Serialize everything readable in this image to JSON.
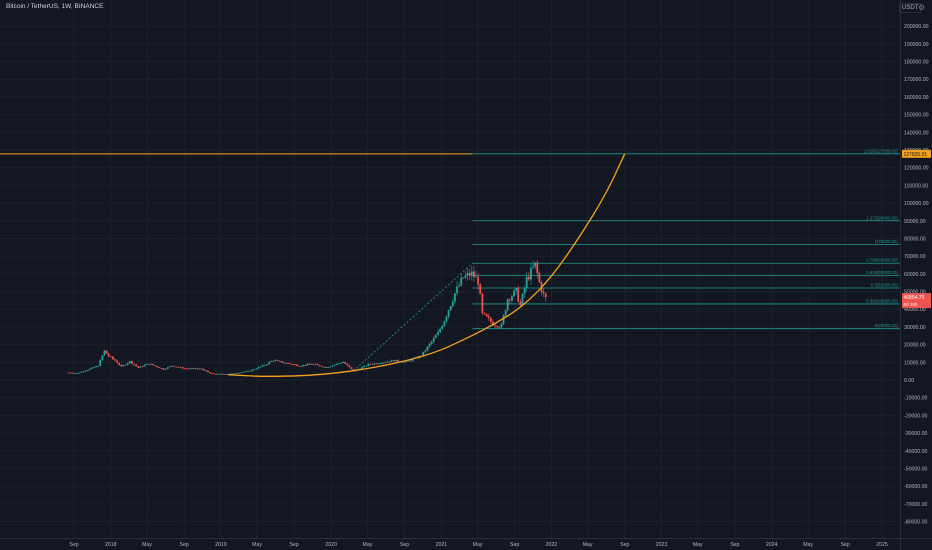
{
  "header": {
    "symbol_title": "Bitcoin / TetherUS, 1W, BINANCE",
    "currency": "USDT",
    "settings_icon": "gear-icon"
  },
  "colors": {
    "background": "#131722",
    "grid": "#1c202b",
    "axis_text": "#b2b5be",
    "up": "#26a69a",
    "down": "#ef5350",
    "curve": "#f7a21c",
    "fib": "#1f9b90",
    "price_badge": "#ef5350",
    "target_badge": "#f7a21c"
  },
  "chart_data": {
    "type": "candlestick",
    "title": "Bitcoin / TetherUS, 1W, BINANCE",
    "ylim": [
      -85000,
      212000
    ],
    "grid": true,
    "y_ticks": [
      -80000,
      -70000,
      -60000,
      -50000,
      -40000,
      -30000,
      -20000,
      -10000,
      0,
      10000,
      20000,
      30000,
      40000,
      50000,
      60000,
      70000,
      80000,
      90000,
      100000,
      110000,
      120000,
      130000,
      140000,
      150000,
      160000,
      170000,
      180000,
      190000,
      200000
    ],
    "x_ticks": [
      {
        "label": "Sep",
        "date": "2017-09-01"
      },
      {
        "label": "2018",
        "date": "2018-01-01"
      },
      {
        "label": "May",
        "date": "2018-05-01"
      },
      {
        "label": "Sep",
        "date": "2018-09-01"
      },
      {
        "label": "2019",
        "date": "2019-01-01"
      },
      {
        "label": "May",
        "date": "2019-05-01"
      },
      {
        "label": "Sep",
        "date": "2019-09-01"
      },
      {
        "label": "2020",
        "date": "2020-01-01"
      },
      {
        "label": "May",
        "date": "2020-05-01"
      },
      {
        "label": "Sep",
        "date": "2020-09-01"
      },
      {
        "label": "2021",
        "date": "2021-01-01"
      },
      {
        "label": "May",
        "date": "2021-05-01"
      },
      {
        "label": "Sep",
        "date": "2021-09-01"
      },
      {
        "label": "2022",
        "date": "2022-01-01"
      },
      {
        "label": "May",
        "date": "2022-05-01"
      },
      {
        "label": "Sep",
        "date": "2022-09-01"
      },
      {
        "label": "2023",
        "date": "2023-01-01"
      },
      {
        "label": "May",
        "date": "2023-05-01"
      },
      {
        "label": "Sep",
        "date": "2023-09-01"
      },
      {
        "label": "2024",
        "date": "2024-01-01"
      },
      {
        "label": "May",
        "date": "2024-05-01"
      },
      {
        "label": "Sep",
        "date": "2024-09-01"
      },
      {
        "label": "2025",
        "date": "2025-01-01"
      }
    ],
    "price_path": [
      [
        "2017-08-14",
        4200
      ],
      [
        "2017-09-11",
        3900
      ],
      [
        "2017-10-16",
        5700
      ],
      [
        "2017-11-20",
        8200
      ],
      [
        "2017-12-11",
        16500
      ],
      [
        "2017-12-25",
        13500
      ],
      [
        "2018-01-15",
        11000
      ],
      [
        "2018-02-05",
        7500
      ],
      [
        "2018-03-05",
        10500
      ],
      [
        "2018-04-02",
        7000
      ],
      [
        "2018-05-07",
        9300
      ],
      [
        "2018-06-25",
        6100
      ],
      [
        "2018-07-23",
        8100
      ],
      [
        "2018-09-03",
        6500
      ],
      [
        "2018-10-29",
        6300
      ],
      [
        "2018-11-26",
        3800
      ],
      [
        "2018-12-17",
        3300
      ],
      [
        "2019-02-11",
        3600
      ],
      [
        "2019-04-08",
        5200
      ],
      [
        "2019-05-27",
        8600
      ],
      [
        "2019-06-24",
        11200
      ],
      [
        "2019-07-29",
        9800
      ],
      [
        "2019-09-23",
        8000
      ],
      [
        "2019-10-28",
        9200
      ],
      [
        "2019-12-16",
        7100
      ],
      [
        "2020-02-10",
        10200
      ],
      [
        "2020-03-16",
        5000
      ],
      [
        "2020-05-04",
        8800
      ],
      [
        "2020-07-27",
        11000
      ],
      [
        "2020-09-07",
        10300
      ],
      [
        "2020-10-26",
        13700
      ],
      [
        "2020-12-21",
        26500
      ],
      [
        "2021-01-11",
        34000
      ],
      [
        "2021-02-15",
        49000
      ],
      [
        "2021-03-15",
        58000
      ],
      [
        "2021-04-12",
        60000
      ],
      [
        "2021-05-03",
        56000
      ],
      [
        "2021-05-17",
        37000
      ],
      [
        "2021-06-21",
        32000
      ],
      [
        "2021-07-19",
        30500
      ],
      [
        "2021-08-09",
        46000
      ],
      [
        "2021-09-06",
        50000
      ],
      [
        "2021-09-20",
        42000
      ],
      [
        "2021-10-11",
        57000
      ],
      [
        "2021-10-25",
        61000
      ],
      [
        "2021-11-08",
        65000
      ],
      [
        "2021-11-22",
        55000
      ],
      [
        "2021-12-06",
        48000
      ],
      [
        "2021-12-13",
        46000
      ]
    ],
    "annotations": {
      "horizontal_line": {
        "value": 127835.01,
        "to_date": "2021-04-14"
      },
      "parabolic_curve": {
        "points": [
          [
            "2019-01-25",
            3000
          ],
          [
            "2019-06-01",
            1800
          ],
          [
            "2019-12-01",
            2800
          ],
          [
            "2020-06-01",
            7000
          ],
          [
            "2020-12-01",
            14500
          ],
          [
            "2021-04-01",
            24000
          ],
          [
            "2021-07-01",
            32000
          ],
          [
            "2021-10-01",
            42000
          ],
          [
            "2022-01-01",
            58000
          ],
          [
            "2022-04-01",
            80000
          ],
          [
            "2022-07-01",
            105000
          ],
          [
            "2022-09-01",
            127835
          ]
        ]
      },
      "dashed_trend": {
        "from": [
          "2020-03-15",
          5000
        ],
        "to": [
          "2021-04-14",
          66000
        ]
      },
      "fib_levels": [
        {
          "value": 127835,
          "label": "1.618(127835.01)"
        },
        {
          "value": 90000,
          "label": "1.272(90000.00)"
        },
        {
          "value": 76500,
          "label": "1(76500.00)"
        },
        {
          "value": 66000,
          "label": "0.786(66000.00)"
        },
        {
          "value": 59000,
          "label": "0.618(59000.00)"
        },
        {
          "value": 52000,
          "label": "0.5(52000.00)"
        },
        {
          "value": 43000,
          "label": "0.382(43000.00)"
        },
        {
          "value": 29000,
          "label": "0(29000.00)"
        }
      ],
      "fib_from_date": "2021-04-14",
      "fib_to_date": "2025-03-01"
    },
    "current_price": {
      "value": 46854.75,
      "label": "46854.75",
      "countdown": "6d 10h"
    },
    "target_price": {
      "value": 127835.01,
      "label": "127835.01"
    }
  }
}
